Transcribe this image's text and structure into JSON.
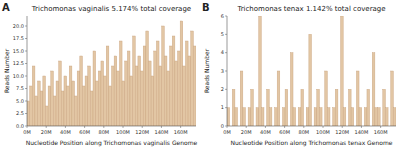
{
  "chart_data": [
    {
      "type": "histogram",
      "annotations": [
        "A"
      ],
      "title": "Trichomonas vaginalis 5.174% total coverage",
      "x_label": "Nucleotide Position along Trichomonas vaginalis Genome",
      "y_label": "Reads Number",
      "color": "#e2c6a4",
      "grid": false,
      "bins": [
        0,
        2750000,
        5500000,
        8250000,
        11000000,
        13750000,
        16500000,
        19250000,
        22000000,
        24750000,
        27500000,
        30250000,
        33000000,
        35750000,
        38500000,
        41250000,
        44000000,
        46750000,
        49500000,
        52250000,
        55000000,
        57750000,
        60500000,
        63250000,
        66000000,
        68750000,
        71500000,
        74250000,
        77000000,
        79750000,
        82500000,
        85250000,
        88000000,
        90750000,
        93500000,
        96250000,
        99000000,
        101750000,
        104500000,
        107250000,
        110000000,
        112750000,
        115500000,
        118250000,
        121000000,
        123750000,
        126500000,
        129250000,
        132000000,
        134750000,
        137500000,
        140250000,
        143000000,
        145750000,
        148500000,
        151250000,
        154000000,
        156750000,
        159500000,
        162250000,
        165000000,
        167750000,
        170500000,
        173250000,
        176000000
      ],
      "values": [
        5,
        8,
        12,
        6,
        9,
        7,
        10,
        4,
        8,
        11,
        6,
        9,
        13,
        7,
        10,
        8,
        12,
        9,
        6,
        11,
        14,
        8,
        10,
        12,
        7,
        15,
        9,
        11,
        13,
        10,
        16,
        8,
        12,
        14,
        11,
        17,
        9,
        13,
        15,
        10,
        18,
        12,
        14,
        11,
        16,
        19,
        13,
        10,
        15,
        17,
        12,
        20,
        14,
        11,
        16,
        18,
        13,
        15,
        21,
        12,
        17,
        14,
        19,
        16
      ],
      "xlim": [
        0,
        176000000
      ],
      "ylim": [
        0,
        22
      ],
      "xticks": [
        {
          "value": 0,
          "label": "0M"
        },
        {
          "value": 20000000,
          "label": "20M"
        },
        {
          "value": 40000000,
          "label": "40M"
        },
        {
          "value": 60000000,
          "label": "60M"
        },
        {
          "value": 80000000,
          "label": "80M"
        },
        {
          "value": 100000000,
          "label": "100M"
        },
        {
          "value": 120000000,
          "label": "120M"
        },
        {
          "value": 140000000,
          "label": "140M"
        },
        {
          "value": 160000000,
          "label": "160M"
        }
      ],
      "yticks": [
        {
          "value": 0,
          "label": "0.0"
        },
        {
          "value": 2.5,
          "label": "2.5"
        },
        {
          "value": 5,
          "label": "5.0"
        },
        {
          "value": 7.5,
          "label": "7.5"
        },
        {
          "value": 10,
          "label": "10.0"
        },
        {
          "value": 12.5,
          "label": "12.5"
        },
        {
          "value": 15,
          "label": "15.0"
        },
        {
          "value": 17.5,
          "label": "17.5"
        },
        {
          "value": 20,
          "label": "20.0"
        }
      ]
    },
    {
      "type": "histogram",
      "annotations": [
        "B"
      ],
      "title": "Trichomonas tenax 1.142% total coverage",
      "x_label": "Nucleotide Position along Trichomonas tenax Genome",
      "y_label": "Reads Number",
      "color": "#e2c6a4",
      "grid": false,
      "bins": [
        0,
        2750000,
        5500000,
        8250000,
        11000000,
        13750000,
        16500000,
        19250000,
        22000000,
        24750000,
        27500000,
        30250000,
        33000000,
        35750000,
        38500000,
        41250000,
        44000000,
        46750000,
        49500000,
        52250000,
        55000000,
        57750000,
        60500000,
        63250000,
        66000000,
        68750000,
        71500000,
        74250000,
        77000000,
        79750000,
        82500000,
        85250000,
        88000000,
        90750000,
        93500000,
        96250000,
        99000000,
        101750000,
        104500000,
        107250000,
        110000000,
        112750000,
        115500000,
        118250000,
        121000000,
        123750000,
        126500000,
        129250000,
        132000000,
        134750000,
        137500000,
        140250000,
        143000000,
        145750000,
        148500000,
        151250000,
        154000000,
        156750000,
        159500000,
        162250000,
        165000000,
        167750000,
        170500000,
        173250000,
        176000000
      ],
      "values": [
        1,
        0,
        2,
        1,
        0,
        3,
        1,
        0,
        1,
        2,
        0,
        1,
        6,
        1,
        0,
        2,
        1,
        0,
        1,
        3,
        0,
        1,
        2,
        0,
        4,
        1,
        0,
        1,
        2,
        0,
        1,
        5,
        0,
        1,
        2,
        1,
        0,
        3,
        1,
        0,
        1,
        2,
        0,
        6,
        1,
        0,
        2,
        1,
        0,
        3,
        1,
        0,
        1,
        2,
        0,
        4,
        1,
        1,
        0,
        2,
        1,
        0,
        3,
        1
      ],
      "xlim": [
        0,
        176000000
      ],
      "ylim": [
        0,
        6
      ],
      "xticks": [
        {
          "value": 0,
          "label": "0M"
        },
        {
          "value": 20000000,
          "label": "20M"
        },
        {
          "value": 40000000,
          "label": "40M"
        },
        {
          "value": 60000000,
          "label": "60M"
        },
        {
          "value": 80000000,
          "label": "80M"
        },
        {
          "value": 100000000,
          "label": "100M"
        },
        {
          "value": 120000000,
          "label": "120M"
        },
        {
          "value": 140000000,
          "label": "140M"
        },
        {
          "value": 160000000,
          "label": "160M"
        }
      ],
      "yticks": [
        0,
        1,
        2,
        3,
        4,
        5,
        6
      ]
    }
  ]
}
